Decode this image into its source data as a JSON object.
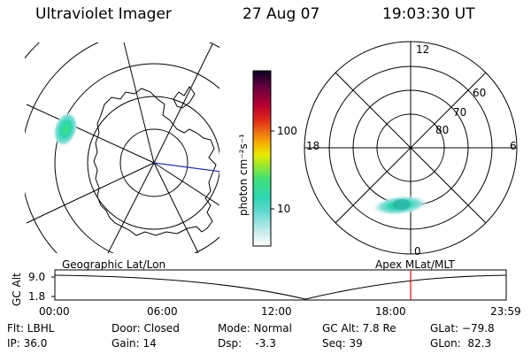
{
  "header": {
    "title": "Ultraviolet Imager",
    "date": "27 Aug 07",
    "time": "19:03:30 UT"
  },
  "left_map": {
    "label": "Geographic Lat/Lon"
  },
  "right_map": {
    "label": "Apex  MLat/MLT",
    "lat_labels": [
      "80",
      "70",
      "60"
    ],
    "mlt_labels": [
      "12",
      "18",
      "6",
      "0"
    ]
  },
  "colorbar": {
    "unit_label": "photon cm⁻²s⁻¹",
    "ticks": [
      "100",
      "10"
    ],
    "colors": [
      "#ffffff",
      "#c8ecec",
      "#5fd8d0",
      "#2bd6b0",
      "#3ee07a",
      "#9be830",
      "#e8e800",
      "#f5b800",
      "#f07a10",
      "#e02818",
      "#b80030",
      "#6e0040",
      "#0a0020"
    ]
  },
  "timeline": {
    "y_axis_label": "GC Alt",
    "y_ticks": [
      "9.0",
      "1.8"
    ],
    "x_ticks": [
      "00:00",
      "06:00",
      "12:00",
      "18:00",
      "23:59"
    ],
    "current_marker_color": "#ff0000"
  },
  "info": {
    "filter": "Flt: LBHL",
    "ip": "IP: 36.0",
    "door": "Door: Closed",
    "gain": "Gain: 14",
    "mode": "Mode: Normal",
    "dsp": "Dsp:    -3.3",
    "gc_alt": "GC Alt: 7.8 Re",
    "seq": "Seq: 39",
    "glat": "GLat: −79.8",
    "glon": "GLon:  82.3"
  }
}
